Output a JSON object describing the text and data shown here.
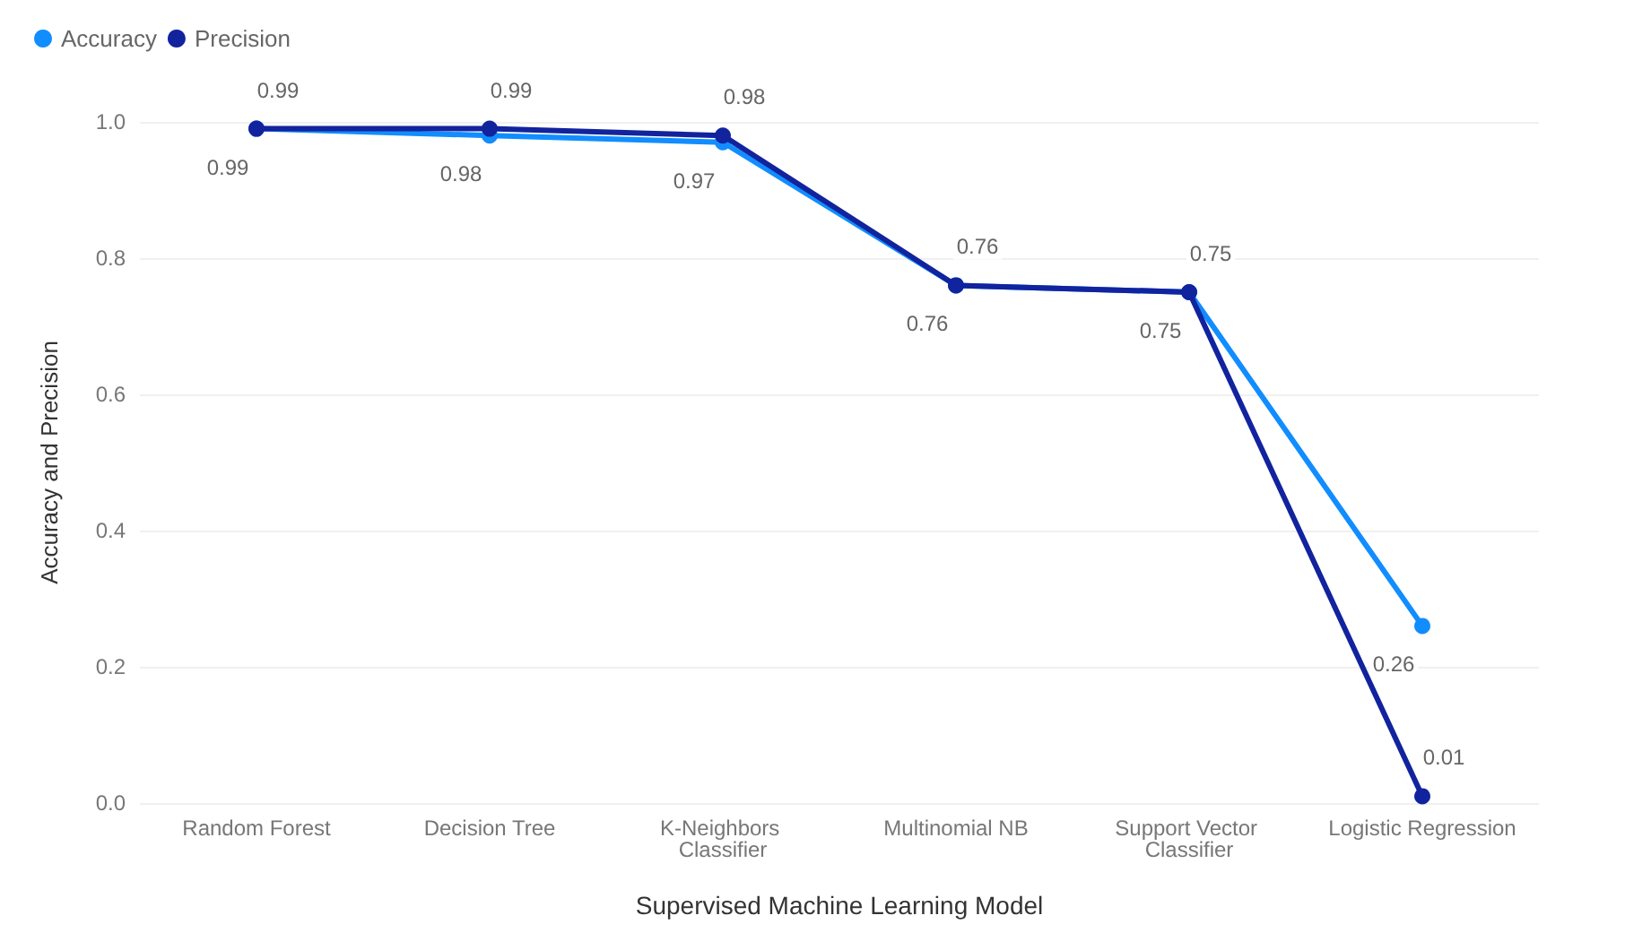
{
  "chart_data": {
    "type": "line",
    "xlabel": "Supervised Machine Learning Model",
    "ylabel": "Accuracy and Precision",
    "categories": [
      "Random Forest",
      "Decision Tree",
      "K-Neighbors Classifier",
      "Multinomial NB",
      "Support Vector Classifier",
      "Logistic Regression"
    ],
    "series": [
      {
        "name": "Accuracy",
        "color": "#118dff",
        "values": [
          0.99,
          0.98,
          0.97,
          0.76,
          0.75,
          0.26
        ]
      },
      {
        "name": "Precision",
        "color": "#12239e",
        "values": [
          0.99,
          0.99,
          0.98,
          0.76,
          0.75,
          0.01
        ]
      }
    ],
    "ylim": [
      0,
      1
    ],
    "yticks": [
      {
        "value": 0,
        "label": "0.0"
      },
      {
        "value": 0.2,
        "label": "0.2"
      },
      {
        "value": 0.4,
        "label": "0.4"
      },
      {
        "value": 0.6,
        "label": "0.6"
      },
      {
        "value": 0.8,
        "label": "0.8"
      },
      {
        "value": 1,
        "label": "1.0"
      }
    ],
    "grid": "y",
    "legend": "top left",
    "marker": "circle",
    "data_labels": true
  }
}
